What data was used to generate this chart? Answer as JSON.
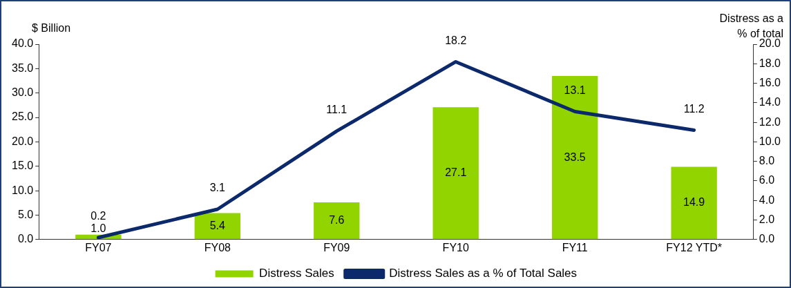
{
  "chart_data": {
    "type": "bar",
    "categories": [
      "FY07",
      "FY08",
      "FY09",
      "FY10",
      "FY11",
      "FY12 YTD*"
    ],
    "ylabel": "$ Billion",
    "y2label": "Distress as a % of total",
    "series": [
      {
        "name": "Distress Sales",
        "color": "#92d400",
        "values": [
          1.0,
          5.4,
          7.6,
          27.1,
          33.5,
          14.9
        ],
        "value_labels": [
          "1.0",
          "5.4",
          "7.6",
          "27.1",
          "33.5",
          "14.9"
        ]
      },
      {
        "name": "Distress Sales as a % of Total Sales",
        "type": "line",
        "axis": "y2",
        "color": "#0c2a6b",
        "values": [
          0.2,
          3.1,
          11.1,
          18.2,
          13.1,
          11.2
        ],
        "value_labels": [
          "0.2",
          "3.1",
          "11.1",
          "18.2",
          "13.1",
          "11.2"
        ]
      }
    ],
    "ylim": [
      0,
      40
    ],
    "yticks": [
      {
        "value": 0,
        "label": "0.0"
      },
      {
        "value": 5,
        "label": "5.0"
      },
      {
        "value": 10,
        "label": "10.0"
      },
      {
        "value": 15,
        "label": "15.0"
      },
      {
        "value": 20,
        "label": "20.0"
      },
      {
        "value": 25,
        "label": "25.0"
      },
      {
        "value": 30,
        "label": "30.0"
      },
      {
        "value": 35,
        "label": "35.0"
      },
      {
        "value": 40,
        "label": "40.0"
      }
    ],
    "y2lim": [
      0,
      20
    ],
    "y2ticks": [
      {
        "value": 0,
        "label": "0.0"
      },
      {
        "value": 2,
        "label": "2.0"
      },
      {
        "value": 4,
        "label": "4.0"
      },
      {
        "value": 6,
        "label": "6.0"
      },
      {
        "value": 8,
        "label": "8.0"
      },
      {
        "value": 10,
        "label": "10.0"
      },
      {
        "value": 12,
        "label": "12.0"
      },
      {
        "value": 14,
        "label": "14.0"
      },
      {
        "value": 16,
        "label": "16.0"
      },
      {
        "value": 18,
        "label": "18.0"
      },
      {
        "value": 20,
        "label": "20.0"
      }
    ],
    "grid": false,
    "legend": "bottom",
    "marker": "none",
    "line_style": "solid"
  }
}
